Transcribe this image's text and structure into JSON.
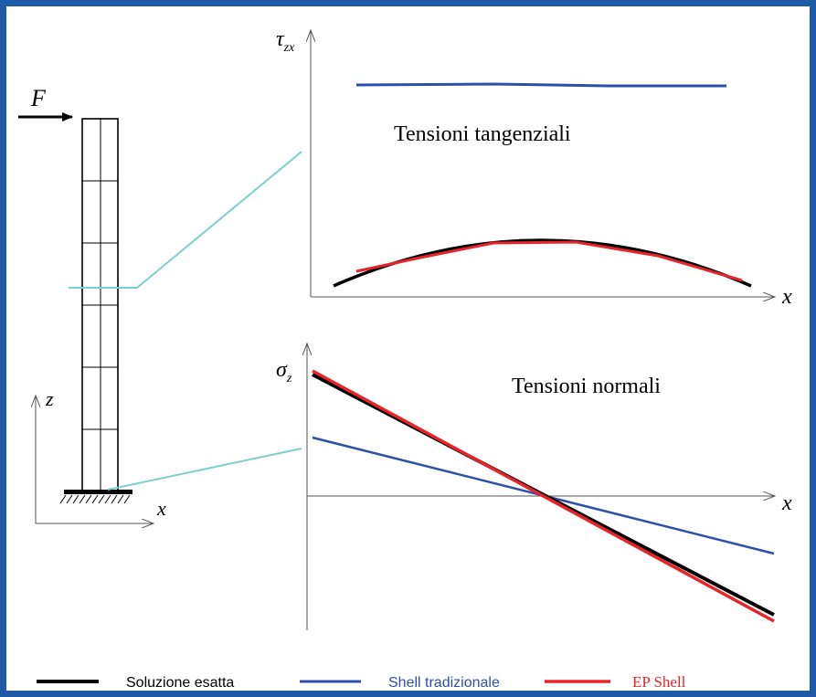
{
  "labels": {
    "force": "F",
    "axis_z": "z",
    "axis_x_structure": "x",
    "tau_axis": "τ",
    "tau_sub": "zx",
    "tau_x": "x",
    "tau_title": "Tensioni tangenziali",
    "sigma_axis": "σ",
    "sigma_sub": "z",
    "sigma_x": "x",
    "sigma_title": "Tensioni normali"
  },
  "legend": [
    {
      "label": "Soluzione esatta",
      "color": "#000000"
    },
    {
      "label": "Shell tradizionale",
      "color": "#2c4fa8"
    },
    {
      "label": "EP Shell",
      "color": "#e8242b"
    }
  ],
  "colors": {
    "frame_border": "#1f5aa6",
    "exact": "#000000",
    "traditional": "#2c4fa8",
    "ep_shell": "#e8242b",
    "leader": "#7ccfcf",
    "axis": "#555555"
  }
}
